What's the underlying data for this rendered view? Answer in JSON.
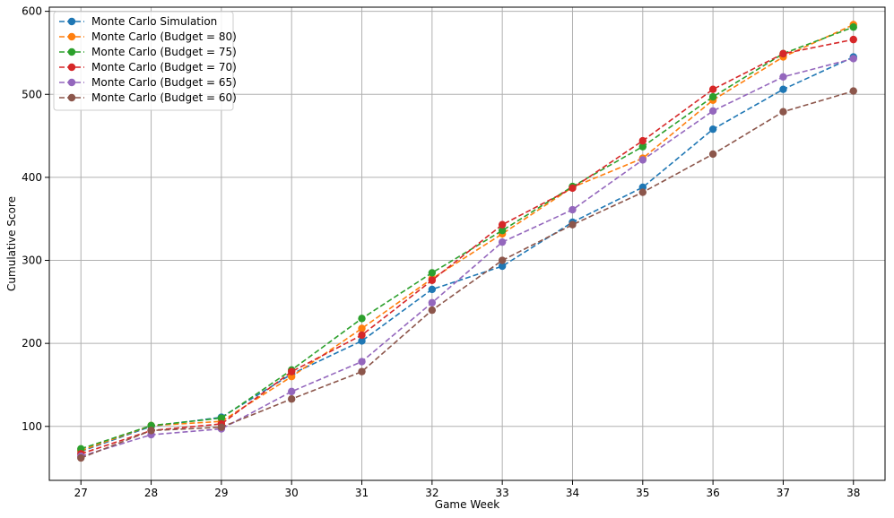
{
  "chart_data": {
    "type": "line",
    "title": "",
    "xlabel": "Game Week",
    "ylabel": "Cumulative Score",
    "x": [
      27,
      28,
      29,
      30,
      31,
      32,
      33,
      34,
      35,
      36,
      37,
      38
    ],
    "xlim": [
      26.55,
      38.45
    ],
    "ylim": [
      35,
      605
    ],
    "yticks": [
      100,
      200,
      300,
      400,
      500,
      600
    ],
    "grid": true,
    "legend_position": "top-left",
    "series": [
      {
        "name": "Monte Carlo Simulation",
        "color": "#1f77b4",
        "values": [
          70,
          100,
          111,
          163,
          203,
          265,
          293,
          346,
          388,
          458,
          506,
          545
        ]
      },
      {
        "name": "Monte Carlo (Budget = 80)",
        "color": "#ff7f0e",
        "values": [
          71,
          101,
          106,
          160,
          218,
          278,
          332,
          388,
          423,
          493,
          545,
          584
        ]
      },
      {
        "name": "Monte Carlo (Budget = 75)",
        "color": "#2ca02c",
        "values": [
          73,
          101,
          110,
          168,
          230,
          285,
          336,
          389,
          437,
          497,
          549,
          581
        ]
      },
      {
        "name": "Monte Carlo (Budget = 70)",
        "color": "#d62728",
        "values": [
          67,
          95,
          103,
          166,
          210,
          276,
          343,
          387,
          444,
          506,
          549,
          566
        ]
      },
      {
        "name": "Monte Carlo (Budget = 65)",
        "color": "#9467bd",
        "values": [
          64,
          90,
          97,
          142,
          178,
          249,
          322,
          361,
          421,
          480,
          521,
          543
        ]
      },
      {
        "name": "Monte Carlo (Budget = 60)",
        "color": "#8c564b",
        "values": [
          62,
          95,
          99,
          133,
          166,
          240,
          300,
          343,
          382,
          428,
          479,
          504
        ]
      }
    ]
  }
}
